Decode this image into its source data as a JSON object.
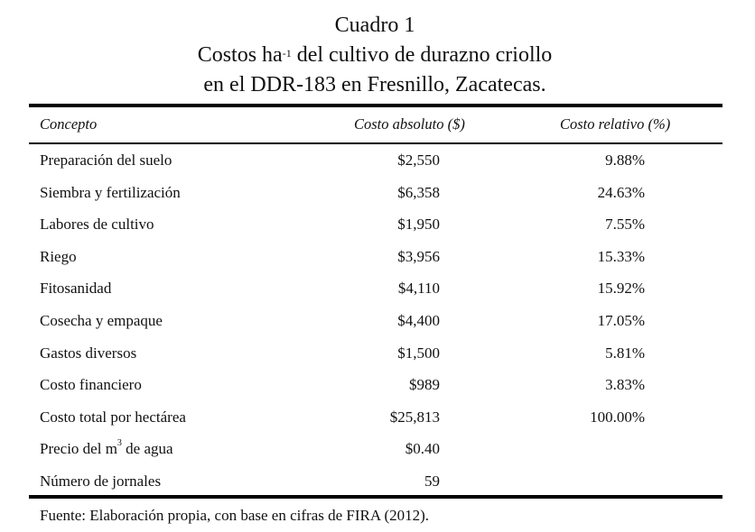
{
  "title": {
    "line1": "Cuadro 1",
    "line2_pre": "Costos ha",
    "line2_sup": "-1",
    "line2_post": " del cultivo de durazno criollo",
    "line3": "en el DDR-183 en Fresnillo, Zacatecas."
  },
  "table": {
    "headers": [
      "Concepto",
      "Costo absoluto ($)",
      "Costo relativo (%)"
    ],
    "rows": [
      {
        "concepto": "Preparación del suelo",
        "absoluto": "$2,550",
        "relativo": "9.88%"
      },
      {
        "concepto": "Siembra y fertilización",
        "absoluto": "$6,358",
        "relativo": "24.63%"
      },
      {
        "concepto": "Labores de cultivo",
        "absoluto": "$1,950",
        "relativo": "7.55%"
      },
      {
        "concepto": "Riego",
        "absoluto": "$3,956",
        "relativo": "15.33%"
      },
      {
        "concepto": "Fitosanidad",
        "absoluto": "$4,110",
        "relativo": "15.92%"
      },
      {
        "concepto": "Cosecha y empaque",
        "absoluto": "$4,400",
        "relativo": "17.05%"
      },
      {
        "concepto": "Gastos diversos",
        "absoluto": "$1,500",
        "relativo": "5.81%"
      },
      {
        "concepto": "Costo financiero",
        "absoluto": "$989",
        "relativo": "3.83%"
      },
      {
        "concepto": "Costo total por hectárea",
        "absoluto": "$25,813",
        "relativo": "100.00%"
      },
      {
        "concepto": "Precio del m",
        "concepto_sup": "3",
        "concepto_post": " de agua",
        "absoluto": "$0.40",
        "relativo": ""
      },
      {
        "concepto": "Número de jornales",
        "absoluto": "59",
        "relativo": ""
      }
    ]
  },
  "footer": "Fuente: Elaboración propia, con base en cifras de FIRA (2012)."
}
